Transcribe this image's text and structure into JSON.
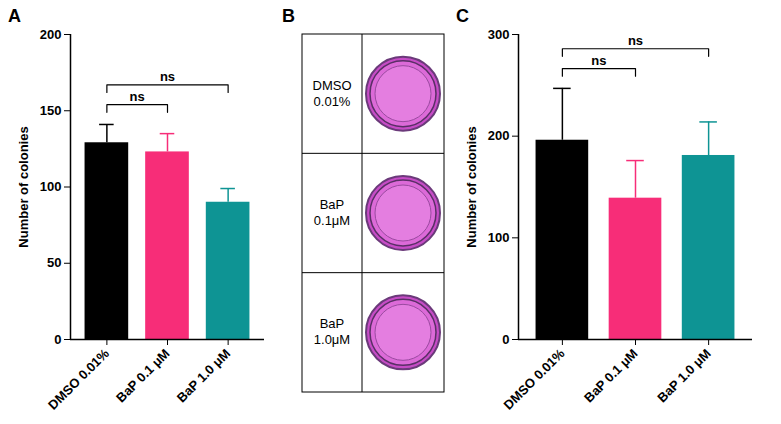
{
  "chart_data": [
    {
      "type": "bar",
      "panel": "A",
      "categories": [
        "DMSO 0.01%",
        "BaP 0.1 μM",
        "BaP 1.0 μM"
      ],
      "values": [
        129,
        123,
        90
      ],
      "errors": [
        12,
        12,
        9
      ],
      "colors": [
        "#000000",
        "#f72d78",
        "#0e9494"
      ],
      "y_label": "Number of colonies",
      "ylim": [
        0,
        200
      ],
      "yticks": [
        0,
        50,
        100,
        150,
        200
      ],
      "annotations": [
        {
          "from": "DMSO 0.01%",
          "to": "BaP 0.1 μM",
          "text": "ns"
        },
        {
          "from": "DMSO 0.01%",
          "to": "BaP 1.0 μM",
          "text": "ns"
        }
      ]
    },
    {
      "type": "image",
      "panel": "B",
      "categories": [
        "DMSO 0.01%",
        "BaP 0.1μM",
        "BaP 1.0μM"
      ]
    },
    {
      "type": "bar",
      "panel": "C",
      "categories": [
        "DMSO 0.01%",
        "BaP 0.1 μM",
        "BaP 1.0 μM"
      ],
      "values": [
        196,
        139,
        181
      ],
      "errors": [
        51,
        37,
        33
      ],
      "colors": [
        "#000000",
        "#f72d78",
        "#0e9494"
      ],
      "y_label": "Number of colonies",
      "ylim": [
        0,
        300
      ],
      "yticks": [
        0,
        100,
        200,
        300
      ],
      "annotations": [
        {
          "from": "DMSO 0.01%",
          "to": "BaP 0.1 μM",
          "text": "ns"
        },
        {
          "from": "DMSO 0.01%",
          "to": "BaP 1.0 μM",
          "text": "ns"
        }
      ]
    }
  ]
}
